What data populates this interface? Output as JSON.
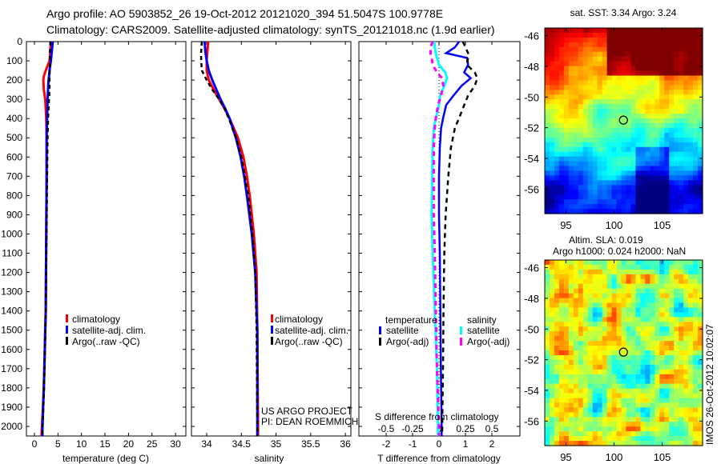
{
  "title": {
    "line1": "Argo profile: AO 5903852_26 19-Oct-2012 20121020_394 51.5047S 100.9778E",
    "line2": "Climatology: CARS2009. Satellite-adjusted climatology: synTS_20121018.nc (1.9d earlier)"
  },
  "credit": {
    "line1": "US ARGO PROJECT",
    "line2": "PI: DEAN ROEMMICH"
  },
  "timestamp": "IMOS 26-Oct-2012 10:02:07",
  "colors": {
    "climatology": "#ff0000",
    "satellite": "#0000ff",
    "argo": "#000000",
    "sal_satellite": "#00ffff",
    "sal_argo": "#ff00ff"
  },
  "chart_data": [
    {
      "type": "line",
      "name": "temperature",
      "xlabel": "temperature (deg C)",
      "ylabel": "",
      "xlim": [
        -1.7,
        32.2
      ],
      "ylim": [
        2050,
        0
      ],
      "xticks": [
        "0",
        "5",
        "10",
        "15",
        "20",
        "25",
        "30"
      ],
      "yticks": [
        "0",
        "100",
        "200",
        "300",
        "400",
        "500",
        "600",
        "700",
        "800",
        "900",
        "1000",
        "1100",
        "1200",
        "1300",
        "1400",
        "1500",
        "1600",
        "1700",
        "1800",
        "1900",
        "2000"
      ],
      "legend": [
        "climatology",
        "satellite-adj. clim.",
        "Argo(..raw -QC)"
      ],
      "depth": [
        0,
        50,
        100,
        150,
        180,
        200,
        250,
        300,
        400,
        500,
        700,
        1000,
        1200,
        1400,
        1600,
        1800,
        2000,
        2050
      ],
      "series": [
        {
          "name": "climatology",
          "values": [
            3.5,
            3.4,
            3.2,
            2.4,
            2.0,
            1.9,
            2.0,
            2.3,
            2.5,
            2.6,
            2.6,
            2.5,
            2.45,
            2.4,
            2.2,
            2.0,
            1.6,
            1.5
          ]
        },
        {
          "name": "satellite-adj. clim.",
          "values": [
            3.9,
            3.7,
            3.5,
            3.2,
            3.1,
            3.0,
            2.9,
            2.8,
            2.7,
            2.6,
            2.6,
            2.5,
            2.45,
            2.4,
            2.2,
            2.0,
            1.7,
            1.7
          ]
        },
        {
          "name": "Argo(..raw -QC)",
          "values": [
            3.4,
            3.3,
            3.3,
            3.25,
            3.2,
            3.2,
            3.2,
            3.1,
            2.9,
            2.8,
            2.7,
            2.6,
            2.5,
            2.4,
            2.25,
            2.05,
            1.75,
            1.7
          ]
        }
      ]
    },
    {
      "type": "line",
      "name": "salinity",
      "xlabel": "salinity",
      "xlim": [
        33.78,
        36.08
      ],
      "ylim": [
        2050,
        0
      ],
      "xticks": [
        "34",
        "34.5",
        "35",
        "35.5",
        "36"
      ],
      "legend": [
        "climatology",
        "satellite-adj. clim.",
        "Argo(..raw -QC)"
      ],
      "depth": [
        0,
        50,
        100,
        150,
        200,
        250,
        300,
        350,
        400,
        500,
        600,
        700,
        800,
        1000,
        1200,
        1500,
        2000,
        2050
      ],
      "series": [
        {
          "name": "climatology",
          "values": [
            34.02,
            34.01,
            34.0,
            34.0,
            34.03,
            34.1,
            34.18,
            34.26,
            34.33,
            34.45,
            34.53,
            34.58,
            34.62,
            34.68,
            34.72,
            34.73,
            34.74,
            34.74
          ]
        },
        {
          "name": "satellite-adj. clim.",
          "values": [
            33.97,
            33.98,
            34.0,
            34.03,
            34.08,
            34.14,
            34.2,
            34.27,
            34.33,
            34.42,
            34.49,
            34.54,
            34.58,
            34.65,
            34.7,
            34.73,
            34.73,
            34.73
          ]
        },
        {
          "name": "Argo(..raw -QC)",
          "values": [
            33.93,
            33.92,
            33.92,
            33.93,
            34.0,
            34.08,
            34.18,
            34.26,
            34.32,
            34.42,
            34.5,
            34.55,
            34.6,
            34.66,
            34.7,
            34.72,
            34.73,
            34.73
          ]
        }
      ]
    },
    {
      "type": "line",
      "name": "difference",
      "xlabel": "T difference from climatology",
      "x2label": "S difference from climatology",
      "xlim": [
        -3.03,
        3.06
      ],
      "x2lim": [
        -0.7575,
        0.765
      ],
      "ylim": [
        2050,
        0
      ],
      "xticks": [
        "-2",
        "-1",
        "0",
        "1",
        "2"
      ],
      "x2ticks": [
        "-0.5",
        "-0.25",
        "0",
        "0.25",
        "0.5"
      ],
      "legend": {
        "temperature_title": "temperature",
        "salinity_title": "salinity",
        "t_satellite": "satellite",
        "t_argo": "Argo(-adj)",
        "s_satellite": "satellite",
        "s_argo": "Argo(-adj)"
      },
      "depth": [
        0,
        30,
        60,
        85,
        120,
        160,
        190,
        230,
        280,
        330,
        400,
        450,
        550,
        700,
        900,
        1100,
        1400,
        1700,
        2000,
        2050
      ],
      "series": [
        {
          "name": "temperature satellite",
          "axis": "T",
          "values": [
            0.76,
            0.6,
            0.27,
            1.06,
            1.1,
            0.95,
            1.2,
            0.85,
            0.55,
            0.27,
            0.15,
            0.08,
            0.03,
            0.0,
            0.0,
            0.03,
            0.05,
            0.07,
            0.1,
            0.1
          ]
        },
        {
          "name": "temperature Argo(-adj)",
          "axis": "T",
          "values": [
            0.9,
            1.0,
            1.1,
            1.1,
            1.05,
            1.35,
            1.45,
            1.35,
            1.1,
            0.95,
            0.75,
            0.6,
            0.45,
            0.35,
            0.25,
            0.2,
            0.17,
            0.15,
            0.12,
            0.12
          ]
        },
        {
          "name": "salinity satellite",
          "axis": "S",
          "values": [
            -0.045,
            -0.04,
            -0.03,
            -0.02,
            0.0,
            0.06,
            0.076,
            0.05,
            0.01,
            0.0,
            -0.03,
            -0.05,
            -0.06,
            -0.065,
            -0.07,
            -0.06,
            -0.04,
            -0.02,
            -0.01,
            -0.01
          ]
        },
        {
          "name": "salinity Argo(-adj)",
          "axis": "S",
          "values": [
            -0.06,
            -0.08,
            -0.08,
            -0.07,
            -0.06,
            -0.02,
            0.03,
            0.04,
            0.02,
            -0.01,
            -0.03,
            -0.04,
            -0.05,
            -0.05,
            -0.05,
            -0.04,
            -0.03,
            -0.02,
            0.0,
            0.0
          ]
        }
      ]
    },
    {
      "type": "heatmap",
      "name": "sst-map",
      "title": "sat. SST: 3.34 Argo: 3.24",
      "xlim": [
        92.8,
        109.2
      ],
      "ylim": [
        -57.6,
        -45.5
      ],
      "xticks": [
        "95",
        "100",
        "105"
      ],
      "yticks": [
        "-46",
        "-48",
        "-50",
        "-52",
        "-54",
        "-56"
      ],
      "marker": {
        "lon": 100.9778,
        "lat": -51.5047
      }
    },
    {
      "type": "heatmap",
      "name": "sla-map",
      "title_line1": "Altim. SLA: 0.019",
      "title_line2": "Argo h1000: 0.024 h2000: NaN",
      "xlim": [
        92.8,
        109.2
      ],
      "ylim": [
        -57.6,
        -45.5
      ],
      "xticks": [
        "95",
        "100",
        "105"
      ],
      "yticks": [
        "-46",
        "-48",
        "-50",
        "-52",
        "-54",
        "-56"
      ],
      "marker": {
        "lon": 100.9778,
        "lat": -51.5047
      }
    }
  ]
}
